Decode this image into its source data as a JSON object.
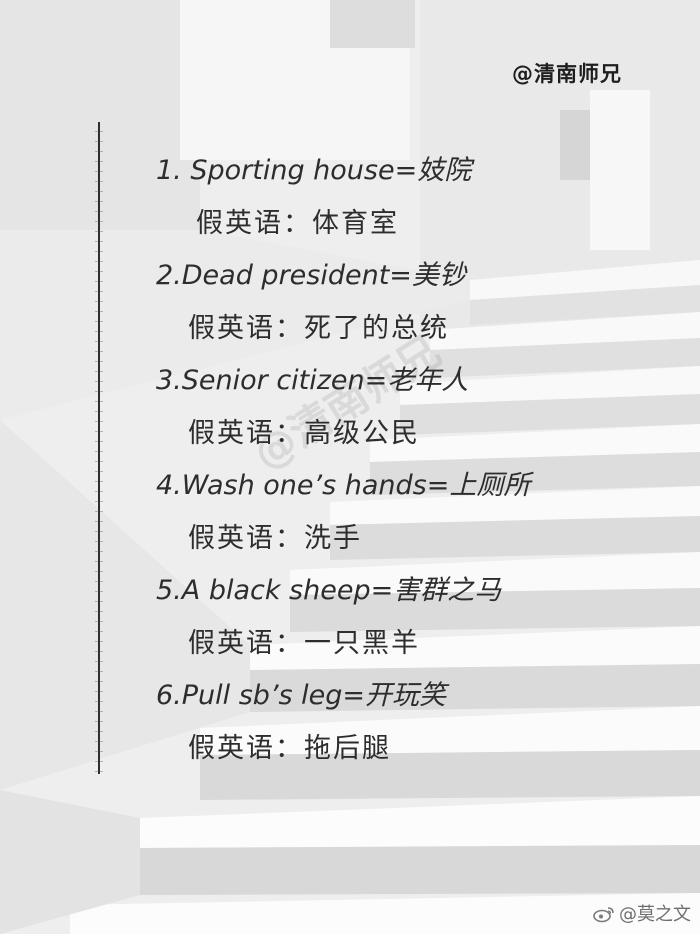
{
  "handle": "@清南师兄",
  "watermark": "@清南师兄",
  "items": [
    {
      "term": "1. Sporting house=妓院",
      "fake": "假英语：体育室"
    },
    {
      "term": "2.Dead president=美钞",
      "fake": "假英语：死了的总统"
    },
    {
      "term": "3.Senior citizen=老年人",
      "fake": "假英语：高级公民"
    },
    {
      "term": "4.Wash one’s hands=上厕所",
      "fake": "假英语：洗手"
    },
    {
      "term": "5.A black sheep=害群之马",
      "fake": "假英语：一只黑羊"
    },
    {
      "term": "6.Pull sb’s leg=开玩笑",
      "fake": "假英语：拖后腿"
    }
  ],
  "footer": {
    "icon": "weibo-icon",
    "text": "@莫之文"
  }
}
